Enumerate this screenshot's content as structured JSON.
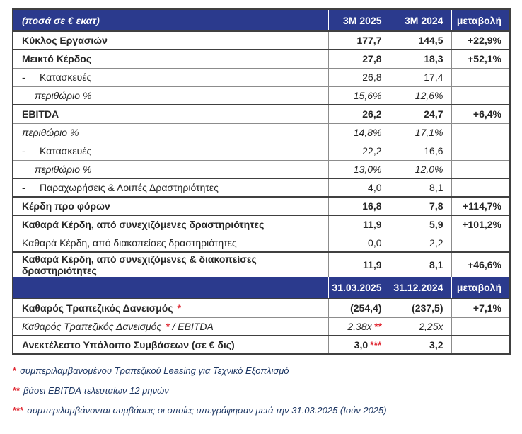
{
  "colors": {
    "header_bg": "#2b3a8d",
    "header_text": "#ffffff",
    "body_text": "#262626",
    "footnote_text": "#1f3864",
    "accent_red": "#e02b35"
  },
  "table": {
    "header1": {
      "label": "(ποσά σε € εκατ)",
      "col1": "3M 2025",
      "col2": "3M 2024",
      "col3": "μεταβολή"
    },
    "section1_rows": [
      {
        "label": "Κύκλος Εργασιών",
        "style": "bold",
        "v1": "177,7",
        "v2": "144,5",
        "chg": "+22,9%",
        "strong_top": false,
        "no_top": true
      },
      {
        "label": "Μεικτό Κέρδος",
        "style": "bold",
        "v1": "27,8",
        "v2": "18,3",
        "chg": "+52,1%",
        "strong_top": true
      },
      {
        "label": "Κατασκευές",
        "bullet": true,
        "style": "normal",
        "v1": "26,8",
        "v2": "17,4",
        "chg": ""
      },
      {
        "label": "περιθώριο %",
        "indent": true,
        "style": "italic",
        "v1": "15,6%",
        "v2": "12,6%",
        "chg": ""
      },
      {
        "label": "EBITDA",
        "style": "bold",
        "v1": "26,2",
        "v2": "24,7",
        "chg": "+6,4%",
        "strong_top": true
      },
      {
        "label": "περιθώριο %",
        "style": "italic",
        "v1": "14,8%",
        "v2": "17,1%",
        "chg": ""
      },
      {
        "label": "Κατασκευές",
        "bullet": true,
        "style": "normal",
        "v1": "22,2",
        "v2": "16,6",
        "chg": ""
      },
      {
        "label": "περιθώριο %",
        "indent": true,
        "style": "italic",
        "v1": "13,0%",
        "v2": "12,0%",
        "chg": ""
      },
      {
        "label": "Παραχωρήσεις & Λοιπές Δραστηριότητες",
        "bullet": true,
        "style": "normal",
        "v1": "4,0",
        "v2": "8,1",
        "chg": "",
        "strong_top": true
      },
      {
        "label": "Κέρδη προ φόρων",
        "style": "bold",
        "v1": "16,8",
        "v2": "7,8",
        "chg": "+114,7%",
        "strong_top": true
      },
      {
        "label": "Καθαρά Κέρδη, από συνεχιζόμενες δραστηριότητες",
        "style": "bold",
        "v1": "11,9",
        "v2": "5,9",
        "chg": "+101,2%",
        "strong_top": true
      },
      {
        "label": "Καθαρά Κέρδη, από διακοπείσες δραστηριότητες",
        "style": "normal",
        "v1": "0,0",
        "v2": "2,2",
        "chg": ""
      },
      {
        "label": "Καθαρά Κέρδη, από συνεχιζόμενες & διακοπείσες δραστηριότητες",
        "style": "bold",
        "v1": "11,9",
        "v2": "8,1",
        "chg": "+46,6%",
        "strong_top": true
      }
    ],
    "header2": {
      "label": "",
      "col1": "31.03.2025",
      "col2": "31.12.2024",
      "col3": "μεταβολή"
    },
    "section2_rows": [
      {
        "label": "Καθαρός Τραπεζικός Δανεισμός",
        "label_star": "*",
        "style": "bold",
        "v1": "(254,4)",
        "v2": "(237,5)",
        "chg": "+7,1%",
        "no_top": true
      },
      {
        "label": "Καθαρός Τραπεζικός Δανεισμός",
        "label_star": "*",
        "label_suffix": " / EBITDA",
        "style": "italic",
        "v1": "2,38x",
        "v1_star": "**",
        "v2": "2,25x",
        "chg": ""
      },
      {
        "label": "Ανεκτέλεστο Υπόλοιπο Συμβάσεων (σε € δις)",
        "style": "bold",
        "v1": "3,0",
        "v1_star": "***",
        "v2": "3,2",
        "chg": "",
        "strong_top": true
      }
    ]
  },
  "footnotes": [
    {
      "star": "*",
      "text": "συμπεριλαμβανομένου Τραπεζικού Leasing για Τεχνικό Εξοπλισμό"
    },
    {
      "star": "**",
      "text": "βάσει EBITDA τελευταίων 12 μηνών"
    },
    {
      "star": "***",
      "text": "συμπεριλαμβάνονται συμβάσεις οι οποίες υπεγράφησαν μετά την 31.03.2025 (Ιούν 2025)"
    }
  ]
}
